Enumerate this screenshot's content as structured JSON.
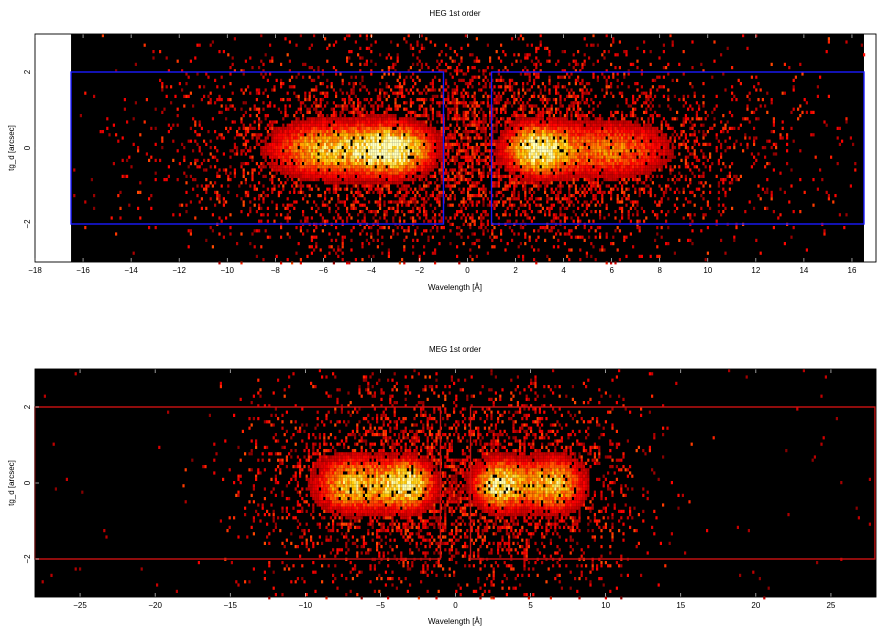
{
  "chart_data": [
    {
      "type": "heatmap",
      "title": "HEG 1st order",
      "xlabel": "Wavelength [Å]",
      "ylabel": "tg_d [arcsec]",
      "xlim": [
        -18,
        17
      ],
      "ylim": [
        -3,
        3
      ],
      "data_extent_x": [
        -16.5,
        16.5
      ],
      "xticks": [
        -18,
        -16,
        -14,
        -12,
        -10,
        -8,
        -6,
        -4,
        -2,
        0,
        2,
        4,
        6,
        8,
        10,
        12,
        14,
        16
      ],
      "yticks": [
        -2,
        0,
        2
      ],
      "box_color": "#1a1aff",
      "regions": [
        {
          "x": [
            -16.5,
            -1.0
          ],
          "y": [
            -2.0,
            2.0
          ]
        },
        {
          "x": [
            1.0,
            16.5
          ],
          "y": [
            -2.0,
            2.0
          ]
        }
      ],
      "intensity_clusters": [
        {
          "x_center": -6.0,
          "x_width": 1.7,
          "y_width": 0.55,
          "peak": 0.85
        },
        {
          "x_center": -3.0,
          "x_width": 1.2,
          "y_width": 0.5,
          "peak": 1.0
        },
        {
          "x_center": 2.8,
          "x_width": 1.0,
          "y_width": 0.5,
          "peak": 1.0
        },
        {
          "x_center": 6.0,
          "x_width": 1.8,
          "y_width": 0.55,
          "peak": 0.7
        }
      ],
      "colormap": "hot",
      "background_color": "#000000"
    },
    {
      "type": "heatmap",
      "title": "MEG 1st order",
      "xlabel": "Wavelength [Å]",
      "ylabel": "tg_d [arcsec]",
      "xlim": [
        -28,
        28
      ],
      "ylim": [
        -3,
        3
      ],
      "data_extent_x": [
        -28,
        28
      ],
      "xticks": [
        -25,
        -20,
        -15,
        -10,
        -5,
        0,
        5,
        10,
        15,
        20,
        25
      ],
      "yticks": [
        -2,
        0,
        2
      ],
      "box_color": "#cc1111",
      "regions": [
        {
          "x": [
            -28,
            -1.0
          ],
          "y": [
            -2.0,
            2.0
          ]
        },
        {
          "x": [
            1.0,
            28
          ],
          "y": [
            -2.0,
            2.0
          ]
        }
      ],
      "intensity_clusters": [
        {
          "x_center": -7.0,
          "x_width": 1.8,
          "y_width": 0.55,
          "peak": 0.9
        },
        {
          "x_center": -3.2,
          "x_width": 1.3,
          "y_width": 0.5,
          "peak": 1.0
        },
        {
          "x_center": 2.8,
          "x_width": 1.3,
          "y_width": 0.5,
          "peak": 1.0
        },
        {
          "x_center": 6.5,
          "x_width": 1.5,
          "y_width": 0.55,
          "peak": 0.9
        }
      ],
      "colormap": "hot",
      "background_color": "#000000"
    }
  ]
}
